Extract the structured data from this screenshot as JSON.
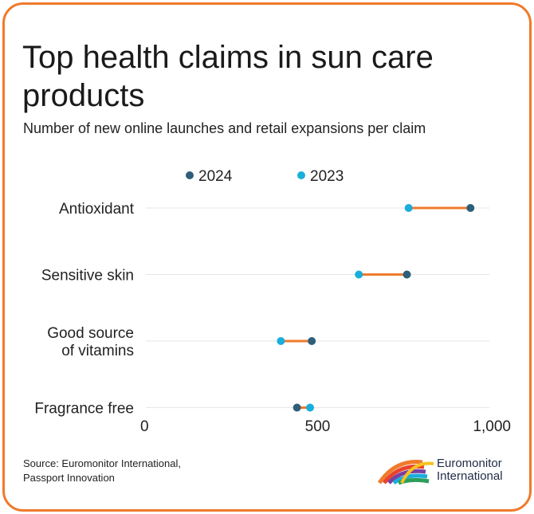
{
  "title": "Top health claims in sun care products",
  "subtitle": "Number of new online launches and retail expansions per claim",
  "source_lines": [
    "Source: Euromonitor International,",
    "Passport Innovation"
  ],
  "logo": {
    "line1": "Euromonitor",
    "line2": "International"
  },
  "colors": {
    "border": "#f07a2b",
    "series_2024": "#2f5e7a",
    "series_2023": "#1aaedb",
    "connector": "#f07a2b",
    "gridline": "#e6e6e6"
  },
  "chart_data": {
    "type": "dumbbell",
    "categories": [
      [
        "Antioxidant"
      ],
      [
        "Sensitive skin"
      ],
      [
        "Good source",
        "of vitamins"
      ],
      [
        "Fragrance free"
      ]
    ],
    "series": [
      {
        "name": "2024",
        "color": "#2f5e7a",
        "values": [
          945,
          760,
          483,
          440
        ]
      },
      {
        "name": "2023",
        "color": "#1aaedb",
        "values": [
          765,
          620,
          393,
          478
        ]
      }
    ],
    "xlim": [
      0,
      1000
    ],
    "xticks": [
      0,
      500,
      1000
    ],
    "xtick_labels": [
      "0",
      "500",
      "1,000"
    ],
    "legend_position": "top",
    "grid": "horizontal-rows"
  }
}
